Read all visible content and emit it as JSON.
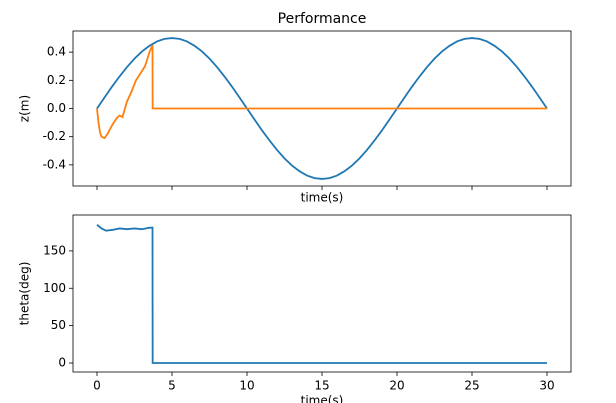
{
  "chart_data": [
    {
      "type": "line",
      "title": "Performance",
      "x_label": "time(s)",
      "y_label": "z(m)",
      "xlim": [
        -1.6,
        31.6
      ],
      "ylim": [
        -0.55,
        0.55
      ],
      "xticks": [
        0,
        5,
        10,
        15,
        20,
        25,
        30
      ],
      "yticks": [
        -0.4,
        -0.2,
        {
          "value": 0,
          "label": "0.0"
        },
        0.2,
        0.4
      ],
      "series": [
        {
          "color": "#1f77b4",
          "x": [
            0,
            0.5,
            1,
            1.5,
            2,
            2.5,
            3,
            3.5,
            4,
            4.5,
            5,
            5.5,
            6,
            6.5,
            7,
            7.5,
            8,
            8.5,
            9,
            9.5,
            10,
            10.5,
            11,
            11.5,
            12,
            12.5,
            13,
            13.5,
            14,
            14.5,
            15,
            15.5,
            16,
            16.5,
            17,
            17.5,
            18,
            18.5,
            19,
            19.5,
            20,
            20.5,
            21,
            21.5,
            22,
            22.5,
            23,
            23.5,
            24,
            24.5,
            25,
            25.5,
            26,
            26.5,
            27,
            27.5,
            28,
            28.5,
            29,
            29.5,
            30
          ],
          "values": [
            0,
            0.078,
            0.155,
            0.227,
            0.294,
            0.354,
            0.405,
            0.445,
            0.476,
            0.494,
            0.5,
            0.494,
            0.476,
            0.445,
            0.405,
            0.354,
            0.294,
            0.227,
            0.155,
            0.078,
            0,
            -0.078,
            -0.155,
            -0.227,
            -0.294,
            -0.354,
            -0.405,
            -0.445,
            -0.476,
            -0.494,
            -0.5,
            -0.494,
            -0.476,
            -0.445,
            -0.405,
            -0.354,
            -0.294,
            -0.227,
            -0.155,
            -0.078,
            0,
            0.078,
            0.155,
            0.227,
            0.294,
            0.354,
            0.405,
            0.445,
            0.476,
            0.494,
            0.5,
            0.494,
            0.476,
            0.445,
            0.405,
            0.354,
            0.294,
            0.227,
            0.155,
            0.078,
            0
          ]
        },
        {
          "color": "#ff7f0e",
          "x": [
            0,
            0.1,
            0.2,
            0.3,
            0.5,
            0.7,
            1.0,
            1.3,
            1.5,
            1.7,
            2.0,
            2.3,
            2.6,
            2.9,
            3.2,
            3.5,
            3.7,
            3.71,
            30
          ],
          "values": [
            0,
            -0.1,
            -0.17,
            -0.2,
            -0.21,
            -0.18,
            -0.12,
            -0.07,
            -0.05,
            -0.06,
            0.05,
            0.12,
            0.2,
            0.25,
            0.3,
            0.4,
            0.45,
            0,
            0
          ]
        }
      ]
    },
    {
      "type": "line",
      "x_label": "time(s)",
      "y_label": "theta(deg)",
      "xlim": [
        -1.6,
        31.6
      ],
      "ylim": [
        -12,
        198
      ],
      "xticks": [
        0,
        5,
        10,
        15,
        20,
        25,
        30
      ],
      "yticks": [
        0,
        50,
        100,
        150
      ],
      "series": [
        {
          "color": "#1f77b4",
          "x": [
            0,
            0.3,
            0.6,
            1,
            1.5,
            2,
            2.5,
            3,
            3.5,
            3.7,
            3.71,
            30
          ],
          "values": [
            185,
            180,
            177,
            178,
            180,
            179,
            180,
            179,
            181,
            181,
            0,
            0
          ]
        }
      ]
    }
  ]
}
